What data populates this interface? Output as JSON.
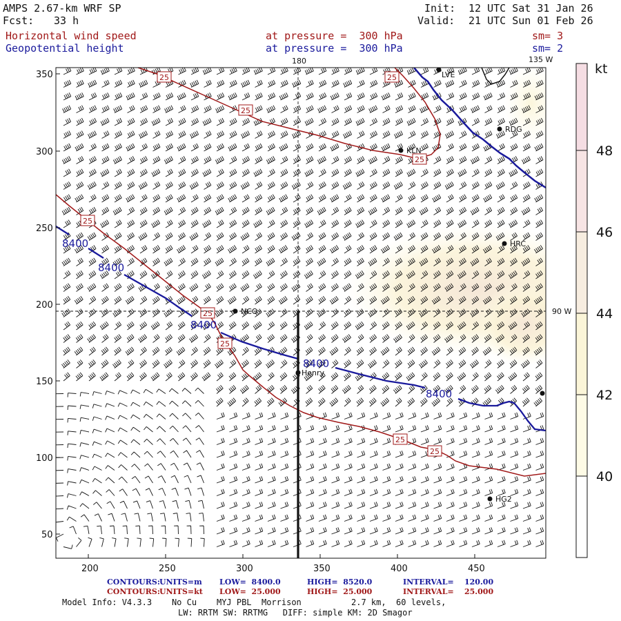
{
  "header": {
    "model_title": "AMPS 2.67-km WRF SP",
    "forecast_label": "Fcst:",
    "forecast_hours": "33 h",
    "init_label": "Init:",
    "init_time": "12 UTC Sat 31 Jan 26",
    "valid_label": "Valid:",
    "valid_time": "21 UTC Sun 01 Feb 26",
    "field1_name": "Horizontal wind speed",
    "field1_level": "at pressure =  300 hPa",
    "field1_sm": "sm= 3",
    "field2_name": "Geopotential height",
    "field2_level": "at pressure =  300 hPa",
    "field2_sm": "sm= 2"
  },
  "map": {
    "x_ticks": [
      "200",
      "250",
      "300",
      "350",
      "400",
      "450"
    ],
    "y_ticks": [
      "350",
      "300",
      "250",
      "200",
      "150",
      "100",
      "50"
    ],
    "lon_labels": {
      "top_center": "180",
      "top_right": "135 W",
      "right_mid": "90 W"
    },
    "stations": [
      {
        "name": "LVE"
      },
      {
        "name": "RDG"
      },
      {
        "name": "KLN"
      },
      {
        "name": "HRC"
      },
      {
        "name": "NCO"
      },
      {
        "name": "Henry"
      },
      {
        "name": "HG2"
      }
    ],
    "height_contour_labels": [
      "8400",
      "8400",
      "8400",
      "8400",
      "8400"
    ],
    "speed_contour_labels": [
      "25",
      "25",
      "25",
      "25",
      "25",
      "25",
      "25",
      "25"
    ]
  },
  "colorbar": {
    "unit": "kt",
    "ticks": [
      "48",
      "46",
      "44",
      "42",
      "40"
    ],
    "colors": [
      "#f5dde3",
      "#f7e4e4",
      "#f7ede0",
      "#fbf5d8",
      "#fefbe6",
      "#ffffff"
    ]
  },
  "footer": {
    "contours_blue": {
      "label": "CONTOURS:",
      "units": "UNITS=m",
      "low": "LOW=  8400.0",
      "high": "HIGH=  8520.0",
      "interval": "INTERVAL=    120.00"
    },
    "contours_red": {
      "label": "CONTOURS:",
      "units": "UNITS=kt",
      "low": "LOW=  25.000",
      "high": "HIGH=  25.000",
      "interval": "INTERVAL=    25.000"
    },
    "model_info": "Model Info: V4.3.3    No Cu    MYJ PBL  Morrison          2.7 km,  60 levels,",
    "model_info2": "LW: RRTM SW: RRTMG   DIFF: simple KM: 2D Smagor"
  },
  "colors": {
    "height": "#1a1a9c",
    "speed": "#a01818",
    "text": "#111111"
  }
}
